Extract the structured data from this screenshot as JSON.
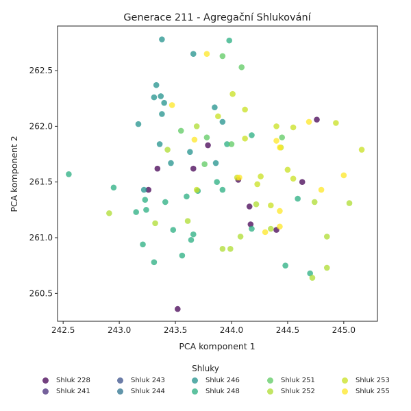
{
  "chart_data": {
    "type": "scatter",
    "title": "Generace 211 - Agregační Shlukování",
    "xlabel": "PCA komponent 1",
    "ylabel": "PCA komponent 2",
    "xlim": [
      242.45,
      245.3
    ],
    "ylim": [
      260.25,
      262.9
    ],
    "xticks": [
      "242.5",
      "243.0",
      "243.5",
      "244.0",
      "244.5",
      "245.0"
    ],
    "xtick_values": [
      242.5,
      243.0,
      243.5,
      244.0,
      244.5,
      245.0
    ],
    "yticks": [
      "260.5",
      "261.0",
      "261.5",
      "262.0",
      "262.5"
    ],
    "ytick_values": [
      260.5,
      261.0,
      261.5,
      262.0,
      262.5
    ],
    "grid": false,
    "legend_title": "Shluky",
    "legend_position": "bottom",
    "series": [
      {
        "name": "Shluk 228",
        "color": "#440154",
        "points": [
          [
            243.52,
            260.36
          ],
          [
            243.34,
            261.62
          ],
          [
            243.26,
            261.43
          ],
          [
            243.66,
            261.62
          ],
          [
            243.79,
            261.83
          ],
          [
            244.06,
            261.52
          ],
          [
            244.16,
            261.28
          ],
          [
            244.17,
            261.12
          ],
          [
            244.4,
            261.07
          ],
          [
            244.63,
            261.5
          ],
          [
            244.76,
            262.06
          ]
        ]
      },
      {
        "name": "Shluk 241",
        "color": "#472c7a",
        "points": []
      },
      {
        "name": "Shluk 243",
        "color": "#3b528b",
        "points": []
      },
      {
        "name": "Shluk 244",
        "color": "#2c728e",
        "points": []
      },
      {
        "name": "Shluk 246",
        "color": "#21918c",
        "points": [
          [
            243.38,
            262.78
          ],
          [
            243.66,
            262.65
          ],
          [
            243.33,
            262.37
          ],
          [
            243.31,
            262.26
          ],
          [
            243.37,
            262.27
          ],
          [
            243.4,
            262.21
          ],
          [
            243.38,
            262.11
          ],
          [
            243.17,
            262.02
          ],
          [
            243.85,
            262.17
          ],
          [
            243.92,
            262.04
          ],
          [
            243.36,
            261.84
          ],
          [
            243.63,
            261.77
          ],
          [
            243.46,
            261.67
          ],
          [
            243.86,
            261.67
          ],
          [
            243.22,
            261.43
          ]
        ]
      },
      {
        "name": "Shluk 248",
        "color": "#28ae80",
        "points": [
          [
            242.55,
            261.57
          ],
          [
            242.95,
            261.45
          ],
          [
            243.23,
            261.34
          ],
          [
            243.24,
            261.25
          ],
          [
            243.15,
            261.23
          ],
          [
            243.41,
            261.32
          ],
          [
            243.6,
            261.37
          ],
          [
            243.7,
            261.42
          ],
          [
            243.87,
            261.5
          ],
          [
            243.92,
            261.43
          ],
          [
            243.48,
            261.07
          ],
          [
            243.66,
            261.03
          ],
          [
            243.64,
            260.98
          ],
          [
            243.21,
            260.94
          ],
          [
            243.31,
            260.78
          ],
          [
            243.56,
            260.84
          ],
          [
            244.18,
            261.08
          ],
          [
            244.48,
            260.75
          ],
          [
            244.7,
            260.68
          ],
          [
            244.59,
            261.35
          ],
          [
            243.96,
            261.84
          ],
          [
            244.18,
            261.92
          ],
          [
            243.98,
            262.77
          ]
        ]
      },
      {
        "name": "Shluk 251",
        "color": "#5ec962",
        "points": [
          [
            243.92,
            262.63
          ],
          [
            244.09,
            262.53
          ],
          [
            243.55,
            261.96
          ],
          [
            243.78,
            261.9
          ],
          [
            244.0,
            261.84
          ],
          [
            243.76,
            261.66
          ],
          [
            244.45,
            261.9
          ]
        ]
      },
      {
        "name": "Shluk 252",
        "color": "#addc30",
        "points": [
          [
            242.91,
            261.22
          ],
          [
            243.32,
            261.13
          ],
          [
            243.61,
            261.15
          ],
          [
            243.69,
            262.0
          ],
          [
            243.43,
            261.79
          ],
          [
            244.08,
            261.01
          ],
          [
            243.92,
            260.9
          ],
          [
            243.99,
            260.9
          ],
          [
            244.22,
            261.3
          ],
          [
            244.35,
            261.08
          ],
          [
            244.74,
            261.32
          ],
          [
            244.85,
            261.01
          ],
          [
            244.85,
            260.73
          ],
          [
            245.05,
            261.31
          ],
          [
            244.72,
            260.64
          ]
        ]
      },
      {
        "name": "Shluk 253",
        "color": "#c8e020",
        "points": [
          [
            244.01,
            262.29
          ],
          [
            244.12,
            262.15
          ],
          [
            243.88,
            262.09
          ],
          [
            244.12,
            261.89
          ],
          [
            244.4,
            262.0
          ],
          [
            244.55,
            261.99
          ],
          [
            244.93,
            262.03
          ],
          [
            245.16,
            261.79
          ],
          [
            244.5,
            261.61
          ],
          [
            244.26,
            261.55
          ],
          [
            244.23,
            261.48
          ],
          [
            244.55,
            261.53
          ],
          [
            244.35,
            261.29
          ],
          [
            243.69,
            261.43
          ],
          [
            244.44,
            261.81
          ],
          [
            244.05,
            261.54
          ]
        ]
      },
      {
        "name": "Shluk 255",
        "color": "#fde725",
        "points": [
          [
            243.78,
            262.65
          ],
          [
            243.47,
            262.19
          ],
          [
            243.67,
            261.88
          ],
          [
            244.4,
            261.87
          ],
          [
            244.43,
            261.81
          ],
          [
            244.69,
            262.04
          ],
          [
            244.8,
            261.43
          ],
          [
            245.0,
            261.56
          ],
          [
            244.43,
            261.24
          ],
          [
            244.43,
            261.1
          ],
          [
            244.3,
            261.05
          ],
          [
            244.07,
            261.54
          ]
        ]
      }
    ]
  }
}
